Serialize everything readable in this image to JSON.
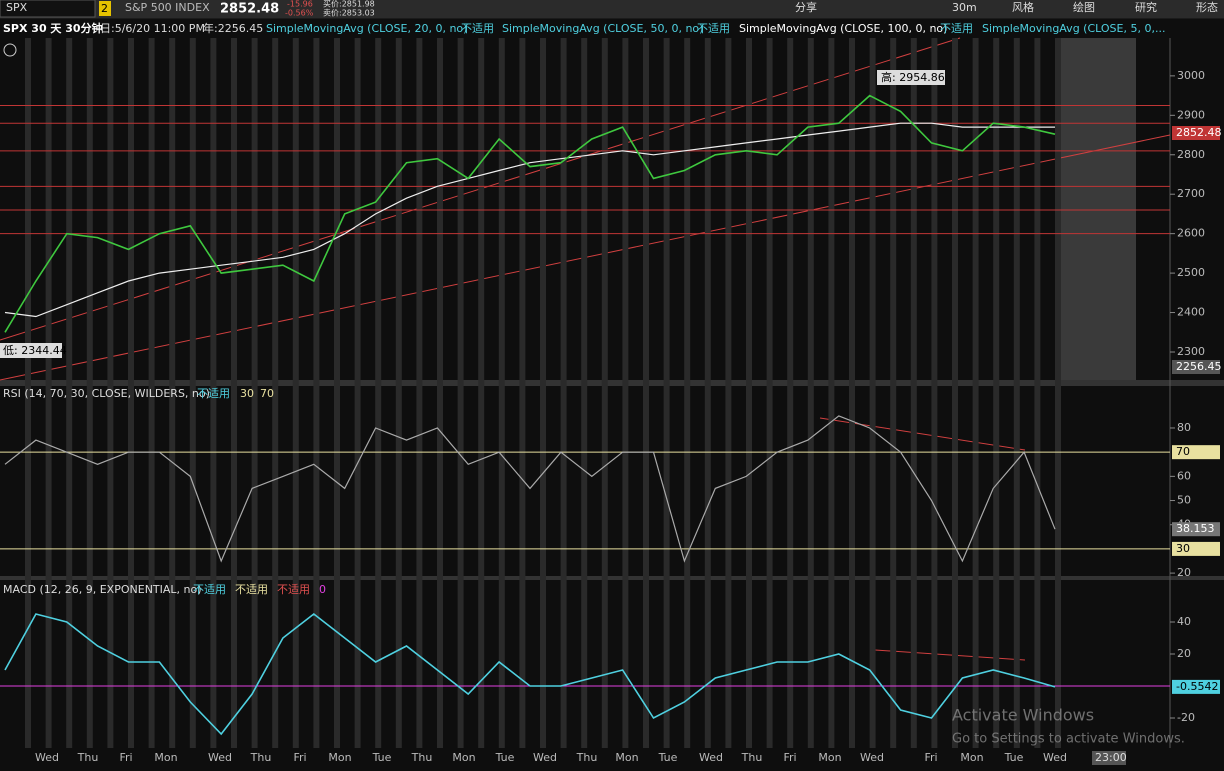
{
  "toolbar": {
    "symbol": "SPX",
    "link": "2",
    "name": "S&P 500 INDEX",
    "last": "2852.48",
    "change": "-15.96",
    "change_pct": "-0.56%",
    "bid": "买价:2851.98",
    "ask": "卖价:2853.03",
    "buttons": [
      "分享",
      "30m",
      "风格",
      "绘图",
      "研究",
      "形态"
    ]
  },
  "header": {
    "chart": "SPX 30 天 30分钟",
    "date": "日:5/6/20 11:00 PM",
    "year": "年:2256.45",
    "studies": [
      {
        "label": "SimpleMovingAvg (CLOSE, 20, 0, no)",
        "status": "不适用"
      },
      {
        "label": "SimpleMovingAvg (CLOSE, 50, 0, no)",
        "status": "不适用"
      },
      {
        "label": "SimpleMovingAvg (CLOSE, 100, 0, no)",
        "status": "不适用"
      },
      {
        "label": "SimpleMovingAvg (CLOSE, 5, 0,..."
      }
    ]
  },
  "price": {
    "ylim": [
      2229,
      3096
    ],
    "yticks": [
      2300,
      2400,
      2500,
      2600,
      2700,
      2800,
      2900,
      3000
    ],
    "close": [
      2350,
      2480,
      2600,
      2590,
      2560,
      2600,
      2620,
      2500,
      2510,
      2520,
      2480,
      2650,
      2680,
      2780,
      2790,
      2740,
      2840,
      2770,
      2780,
      2840,
      2870,
      2740,
      2760,
      2800,
      2810,
      2800,
      2870,
      2880,
      2950,
      2910,
      2830,
      2810,
      2880,
      2870,
      2852
    ],
    "sma100": [
      2400,
      2390,
      2420,
      2450,
      2480,
      2500,
      2510,
      2520,
      2530,
      2540,
      2560,
      2600,
      2650,
      2690,
      2720,
      2740,
      2760,
      2780,
      2790,
      2800,
      2810,
      2800,
      2810,
      2820,
      2830,
      2840,
      2850,
      2860,
      2870,
      2880,
      2880,
      2870,
      2870,
      2870,
      2870
    ],
    "levels": [
      2925,
      2880,
      2810,
      2720,
      2660,
      2600
    ],
    "last_label": "2852.48",
    "low_label": "2256.45",
    "high_note": "高: 2954.86",
    "low_note": "低: 2344.44"
  },
  "rsi": {
    "title": "RSI (14, 70, 30, CLOSE, WILDERS, no)",
    "status": "不适用",
    "lower": 30,
    "upper": 70,
    "ylim": [
      18.8,
      89.5
    ],
    "yticks": [
      20,
      40,
      50,
      60,
      80
    ],
    "values": [
      65,
      75,
      70,
      65,
      70,
      70,
      60,
      25,
      55,
      60,
      65,
      55,
      80,
      75,
      80,
      65,
      70,
      55,
      70,
      60,
      70,
      70,
      25,
      55,
      60,
      70,
      75,
      85,
      80,
      70,
      50,
      25,
      55,
      70,
      38.153
    ],
    "last": 38.153
  },
  "macd": {
    "title": "MACD (12, 26, 9, EXPONENTIAL, no)",
    "statuses": [
      "不适用",
      "不适用",
      "不适用"
    ],
    "zero": 0,
    "ylim": [
      -38.75,
      53.75
    ],
    "yticks": [
      -20,
      20,
      40
    ],
    "values": [
      10,
      45,
      40,
      25,
      15,
      15,
      -10,
      -30,
      -5,
      30,
      45,
      30,
      15,
      25,
      10,
      -5,
      15,
      0,
      0,
      5,
      10,
      -20,
      -10,
      5,
      10,
      15,
      15,
      20,
      10,
      -15,
      -20,
      5,
      10,
      5,
      -0.5542
    ],
    "last": -0.5542
  },
  "x_axis": {
    "labels": [
      "Wed",
      "Thu",
      "Fri",
      "Mon",
      "Wed",
      "Thu",
      "Fri",
      "Mon",
      "Tue",
      "Thu",
      "Mon",
      "Tue",
      "Wed",
      "Thu",
      "Mon",
      "Tue",
      "Wed",
      "Thu",
      "Fri",
      "Mon",
      "Wed",
      "Fri",
      "Mon",
      "Tue",
      "Wed"
    ],
    "time": "23:00"
  },
  "watermark": {
    "title": "Activate Windows",
    "body": "Go to Settings to activate Windows."
  }
}
